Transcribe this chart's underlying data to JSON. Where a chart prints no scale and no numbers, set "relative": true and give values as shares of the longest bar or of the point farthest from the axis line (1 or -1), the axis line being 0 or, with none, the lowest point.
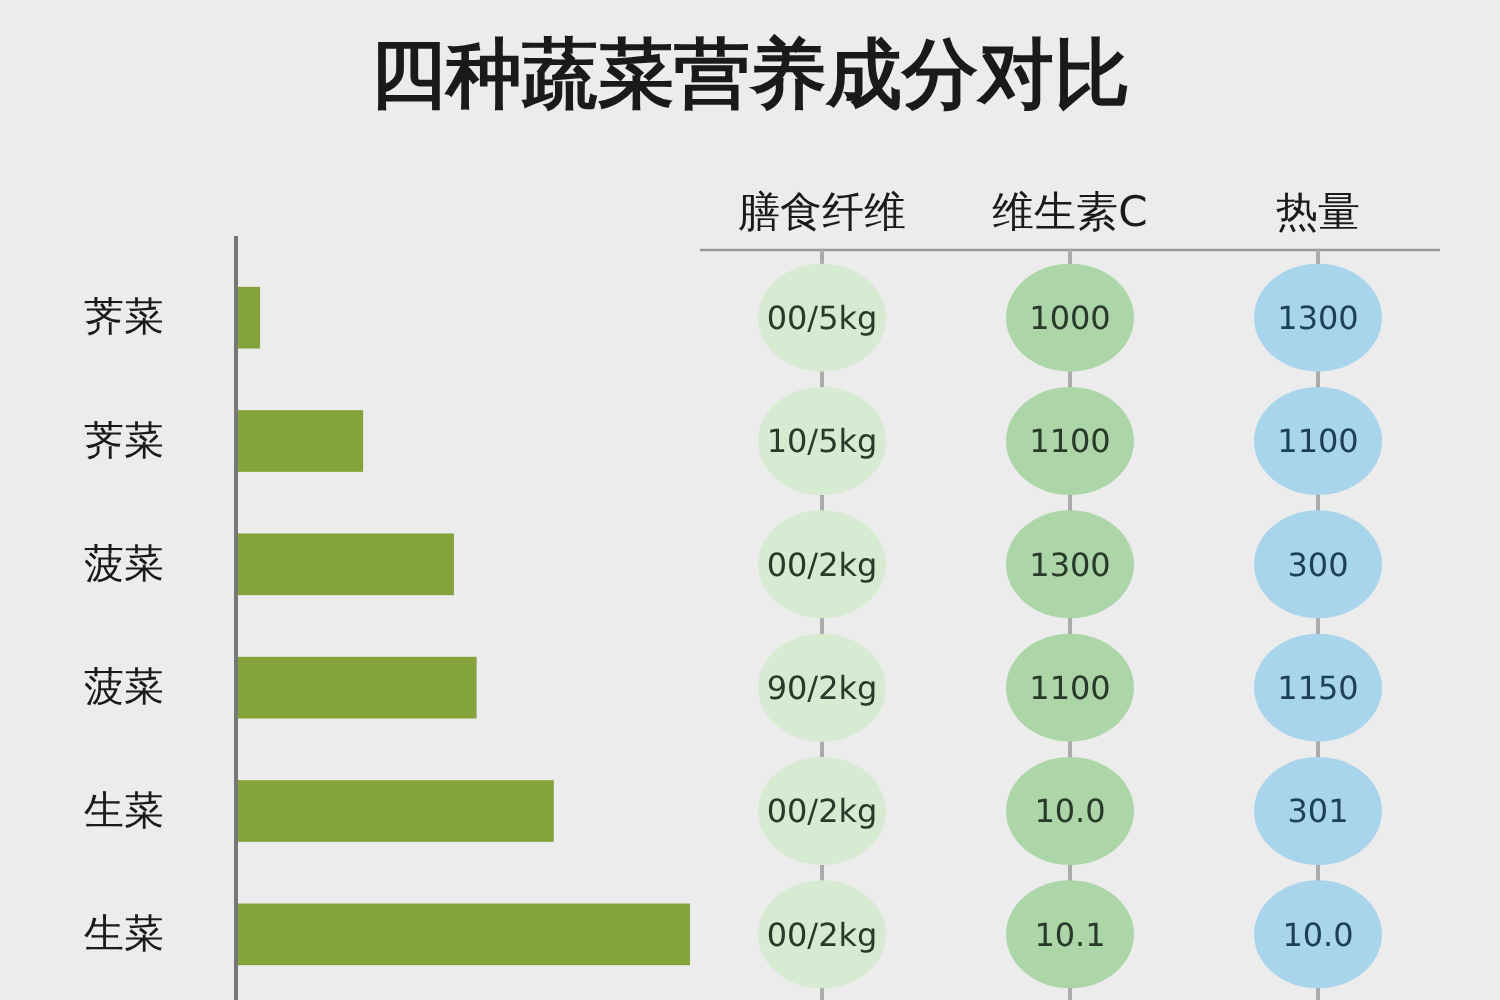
{
  "chart_data": [
    {
      "type": "bar",
      "title": "四种蔬菜营养成分对比",
      "orientation": "horizontal",
      "relative": true,
      "color": "#84a33a",
      "categories": [
        "荠菜",
        "荠菜",
        "菠菜",
        "菠菜",
        "生菜",
        "生菜"
      ],
      "values": [
        0.053,
        0.28,
        0.48,
        0.53,
        0.7,
        1
      ]
    },
    {
      "type": "other",
      "categories": [
        "膳食纤维",
        "维生素C",
        "热量"
      ],
      "colors": [
        "#d6ebd2",
        "#acd6a8",
        "#a8d4ec"
      ],
      "cell_labels": [
        [
          "00/5kg",
          "1000",
          "1300"
        ],
        [
          "10/5kg",
          "1100",
          "1100"
        ],
        [
          "00/2kg",
          "1300",
          "300"
        ],
        [
          "90/2kg",
          "1100",
          "1150"
        ],
        [
          "00/2kg",
          "10.0",
          "301"
        ],
        [
          "00/2kg",
          "10.1",
          "10.0"
        ]
      ]
    }
  ]
}
